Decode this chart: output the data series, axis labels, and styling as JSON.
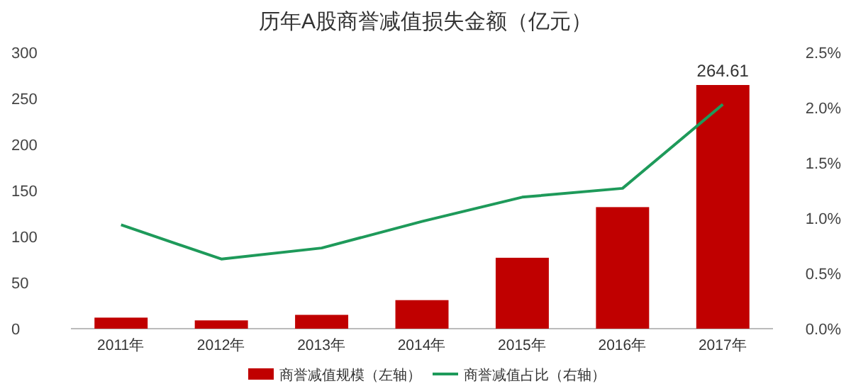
{
  "chart_data": {
    "type": "bar",
    "title": "历年A股商誉减值损失金额（亿元）",
    "categories": [
      "2011年",
      "2012年",
      "2013年",
      "2014年",
      "2015年",
      "2016年",
      "2017年"
    ],
    "series": [
      {
        "name": "商誉减值规模（左轴）",
        "color": "#c00000",
        "values": [
          12,
          9,
          15,
          31,
          77,
          132,
          264.61
        ],
        "value_labels": [
          null,
          null,
          null,
          null,
          null,
          null,
          "264.61"
        ]
      },
      {
        "name": "商誉减值占比（右轴）",
        "type": "line",
        "axis": "y2",
        "color": "#1e9a5a",
        "values": [
          0.94,
          0.63,
          0.73,
          0.97,
          1.19,
          1.27,
          2.03
        ]
      }
    ],
    "ylim": [
      0,
      300
    ],
    "yticks": [
      0,
      50,
      100,
      150,
      200,
      250,
      300
    ],
    "y2lim": [
      0,
      2.5
    ],
    "y2ticks": [
      {
        "value": 0,
        "label": "0.0%"
      },
      {
        "value": 0.5,
        "label": "0.5%"
      },
      {
        "value": 1,
        "label": "1.0%"
      },
      {
        "value": 1.5,
        "label": "1.5%"
      },
      {
        "value": 2,
        "label": "2.0%"
      },
      {
        "value": 2.5,
        "label": "2.5%"
      }
    ],
    "legend": "bottom",
    "grid": false,
    "marker": "none"
  }
}
